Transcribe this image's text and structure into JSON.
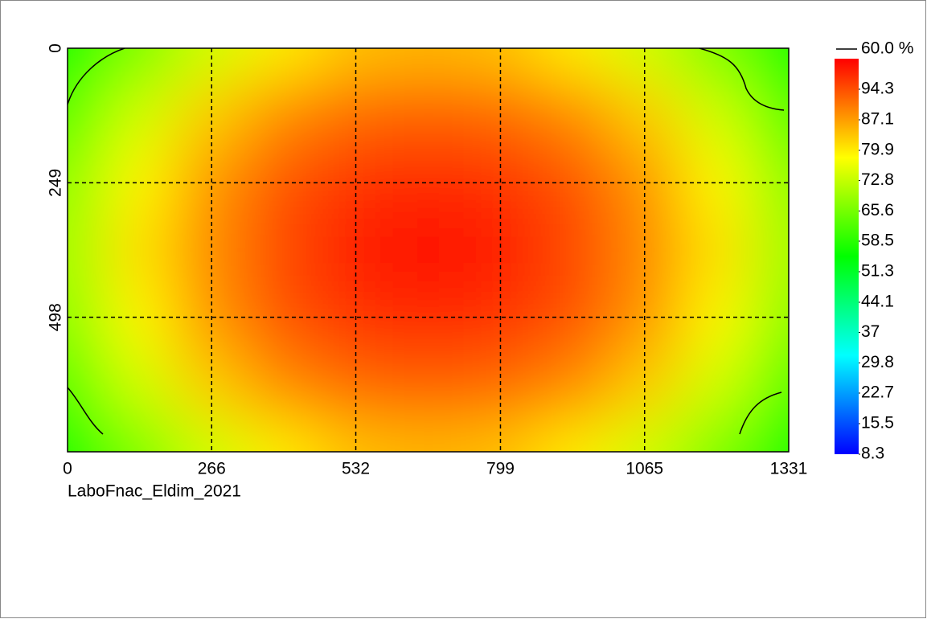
{
  "chart_data": {
    "type": "heatmap",
    "caption": "LaboFnac_Eldim_2021",
    "xlim": [
      0,
      1331
    ],
    "xticks": [
      0,
      266,
      532,
      799,
      1065,
      1331
    ],
    "ylim": [
      0,
      747
    ],
    "yticks": [
      0,
      249,
      498
    ],
    "grid": true,
    "values": [
      [
        55,
        66,
        74,
        80,
        84,
        85,
        84,
        80,
        74,
        66,
        55
      ],
      [
        63,
        74,
        83,
        89,
        92,
        93,
        92,
        89,
        83,
        74,
        63
      ],
      [
        68,
        79,
        88,
        94,
        97,
        98,
        97,
        94,
        88,
        79,
        68
      ],
      [
        70,
        81,
        89,
        95,
        99,
        100,
        99,
        95,
        89,
        81,
        70
      ],
      [
        68,
        79,
        88,
        94,
        97,
        98,
        97,
        94,
        88,
        79,
        68
      ],
      [
        63,
        74,
        83,
        89,
        92,
        93,
        92,
        89,
        83,
        74,
        63
      ],
      [
        55,
        66,
        74,
        80,
        84,
        85,
        84,
        80,
        74,
        66,
        55
      ]
    ],
    "colormap": [
      "#0000ff",
      "#00ffff",
      "#00ff00",
      "#ffff00",
      "#ff0000"
    ],
    "clim": [
      8.3,
      101.5
    ],
    "cticks": [
      94.3,
      87.1,
      79.9,
      72.8,
      65.6,
      58.5,
      51.3,
      44.1,
      37.0,
      29.8,
      22.7,
      15.5,
      8.3
    ],
    "contour": {
      "value": 60,
      "label": "60.0 %"
    }
  }
}
